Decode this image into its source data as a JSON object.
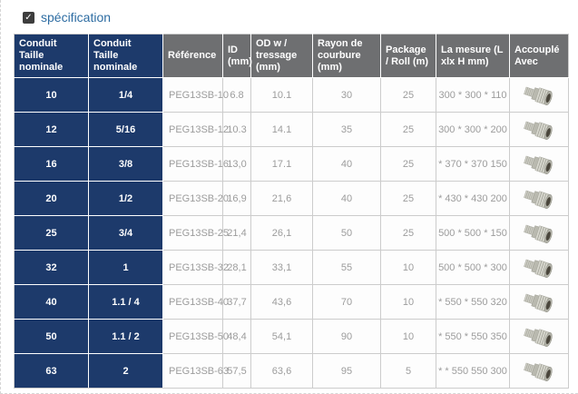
{
  "page": {
    "spec_label": "spécification",
    "spec_checkbox_checked": true,
    "check_glyph": "✓"
  },
  "colors": {
    "navy_header": "#1d3a6b",
    "gray_header": "#6e6f71",
    "body_text": "#9c9c9c",
    "link_blue": "#2d6ca2",
    "border": "#cccccc",
    "checkbox_dark": "#3d3d3d"
  },
  "table": {
    "columns": [
      "Conduit Taille nominale",
      "Conduit Taille nominale",
      "Référence",
      "ID (mm)",
      "OD w / tressage (mm)",
      "Rayon de courbure (mm)",
      "Package / Roll (m)",
      "La mesure (L xlx H mm)",
      "Accouplé Avec"
    ],
    "coupling_icon": "coupling-fitting-icon",
    "rows": [
      {
        "size_mm": "10",
        "size_in": "1/4",
        "reference": "PEG13SB-10",
        "id_mm": "6.8",
        "od_mm": "10.1",
        "bend_radius": "30",
        "package_roll": "25",
        "measure": "300 * 300 * 110"
      },
      {
        "size_mm": "12",
        "size_in": "5/16",
        "reference": "PEG13SB-12",
        "id_mm": "10.3",
        "od_mm": "14.1",
        "bend_radius": "35",
        "package_roll": "25",
        "measure": "300 * 300 * 200"
      },
      {
        "size_mm": "16",
        "size_in": "3/8",
        "reference": "PEG13SB-16",
        "id_mm": "13,0",
        "od_mm": "17.1",
        "bend_radius": "40",
        "package_roll": "25",
        "measure": "* 370 * 370 150"
      },
      {
        "size_mm": "20",
        "size_in": "1/2",
        "reference": "PEG13SB-20",
        "id_mm": "16,9",
        "od_mm": "21,6",
        "bend_radius": "40",
        "package_roll": "25",
        "measure": "* 430 * 430 200"
      },
      {
        "size_mm": "25",
        "size_in": "3/4",
        "reference": "PEG13SB-25",
        "id_mm": "21,4",
        "od_mm": "26,1",
        "bend_radius": "50",
        "package_roll": "25",
        "measure": "500 * 500 * 150"
      },
      {
        "size_mm": "32",
        "size_in": "1",
        "reference": "PEG13SB-32",
        "id_mm": "28,1",
        "od_mm": "33,1",
        "bend_radius": "55",
        "package_roll": "10",
        "measure": "500 * 500 * 300"
      },
      {
        "size_mm": "40",
        "size_in": "1.1 / 4",
        "reference": "PEG13SB-40",
        "id_mm": "37,7",
        "od_mm": "43,6",
        "bend_radius": "70",
        "package_roll": "10",
        "measure": "* 550 * 550 320"
      },
      {
        "size_mm": "50",
        "size_in": "1.1 / 2",
        "reference": "PEG13SB-50",
        "id_mm": "48,4",
        "od_mm": "54,1",
        "bend_radius": "90",
        "package_roll": "10",
        "measure": "* 550 * 550 350"
      },
      {
        "size_mm": "63",
        "size_in": "2",
        "reference": "PEG13SB-63",
        "id_mm": "57,5",
        "od_mm": "63,6",
        "bend_radius": "95",
        "package_roll": "5",
        "measure": "* * 550 550 300"
      }
    ]
  }
}
